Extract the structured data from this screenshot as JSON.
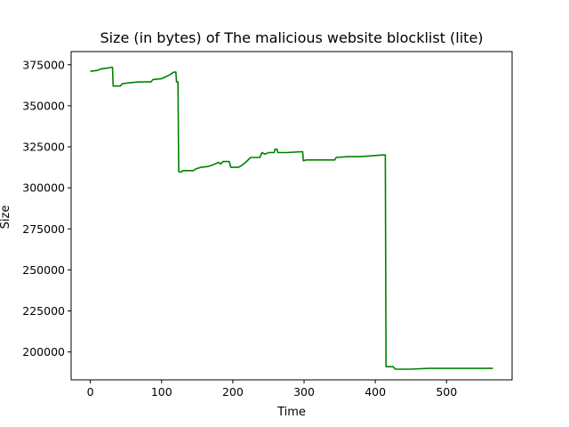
{
  "chart_data": {
    "type": "line",
    "title": "Size (in bytes) of The malicious website blocklist (lite)",
    "xlabel": "Time",
    "ylabel": "Size",
    "xlim": [
      -27,
      592
    ],
    "ylim": [
      183000,
      383000
    ],
    "xticks": [
      0,
      100,
      200,
      300,
      400,
      500
    ],
    "yticks": [
      200000,
      225000,
      250000,
      275000,
      300000,
      325000,
      350000,
      375000
    ],
    "ytick_labels": [
      "200000",
      "225000",
      "250000",
      "275000",
      "300000",
      "325000",
      "350000",
      "375000"
    ],
    "grid": false,
    "series": [
      {
        "color": "#008000",
        "points": [
          [
            0,
            371000
          ],
          [
            10,
            371500
          ],
          [
            15,
            372500
          ],
          [
            25,
            373000
          ],
          [
            30,
            373500
          ],
          [
            31,
            373500
          ],
          [
            32,
            362000
          ],
          [
            42,
            362000
          ],
          [
            45,
            363500
          ],
          [
            55,
            364000
          ],
          [
            68,
            364500
          ],
          [
            85,
            364500
          ],
          [
            88,
            366000
          ],
          [
            100,
            366500
          ],
          [
            105,
            367500
          ],
          [
            112,
            369000
          ],
          [
            117,
            370500
          ],
          [
            120,
            370500
          ],
          [
            121,
            364500
          ],
          [
            123,
            364500
          ],
          [
            124,
            310000
          ],
          [
            127,
            309500
          ],
          [
            130,
            310500
          ],
          [
            145,
            310500
          ],
          [
            148,
            311500
          ],
          [
            155,
            312500
          ],
          [
            165,
            313000
          ],
          [
            172,
            314000
          ],
          [
            180,
            315500
          ],
          [
            183,
            314500
          ],
          [
            186,
            316000
          ],
          [
            195,
            316000
          ],
          [
            197,
            312500
          ],
          [
            208,
            312500
          ],
          [
            212,
            313500
          ],
          [
            218,
            315500
          ],
          [
            225,
            318500
          ],
          [
            238,
            318500
          ],
          [
            241,
            321500
          ],
          [
            245,
            320500
          ],
          [
            250,
            321500
          ],
          [
            258,
            321500
          ],
          [
            259,
            323500
          ],
          [
            262,
            323500
          ],
          [
            263,
            321500
          ],
          [
            275,
            321500
          ],
          [
            298,
            322000
          ],
          [
            299,
            316500
          ],
          [
            303,
            317000
          ],
          [
            325,
            317000
          ],
          [
            343,
            317000
          ],
          [
            345,
            318500
          ],
          [
            362,
            319000
          ],
          [
            378,
            319000
          ],
          [
            395,
            319500
          ],
          [
            410,
            320000
          ],
          [
            414,
            320000
          ],
          [
            415,
            191000
          ],
          [
            425,
            191000
          ],
          [
            428,
            189500
          ],
          [
            450,
            189500
          ],
          [
            475,
            190000
          ],
          [
            490,
            190000
          ],
          [
            520,
            190000
          ],
          [
            565,
            190000
          ]
        ]
      }
    ]
  }
}
